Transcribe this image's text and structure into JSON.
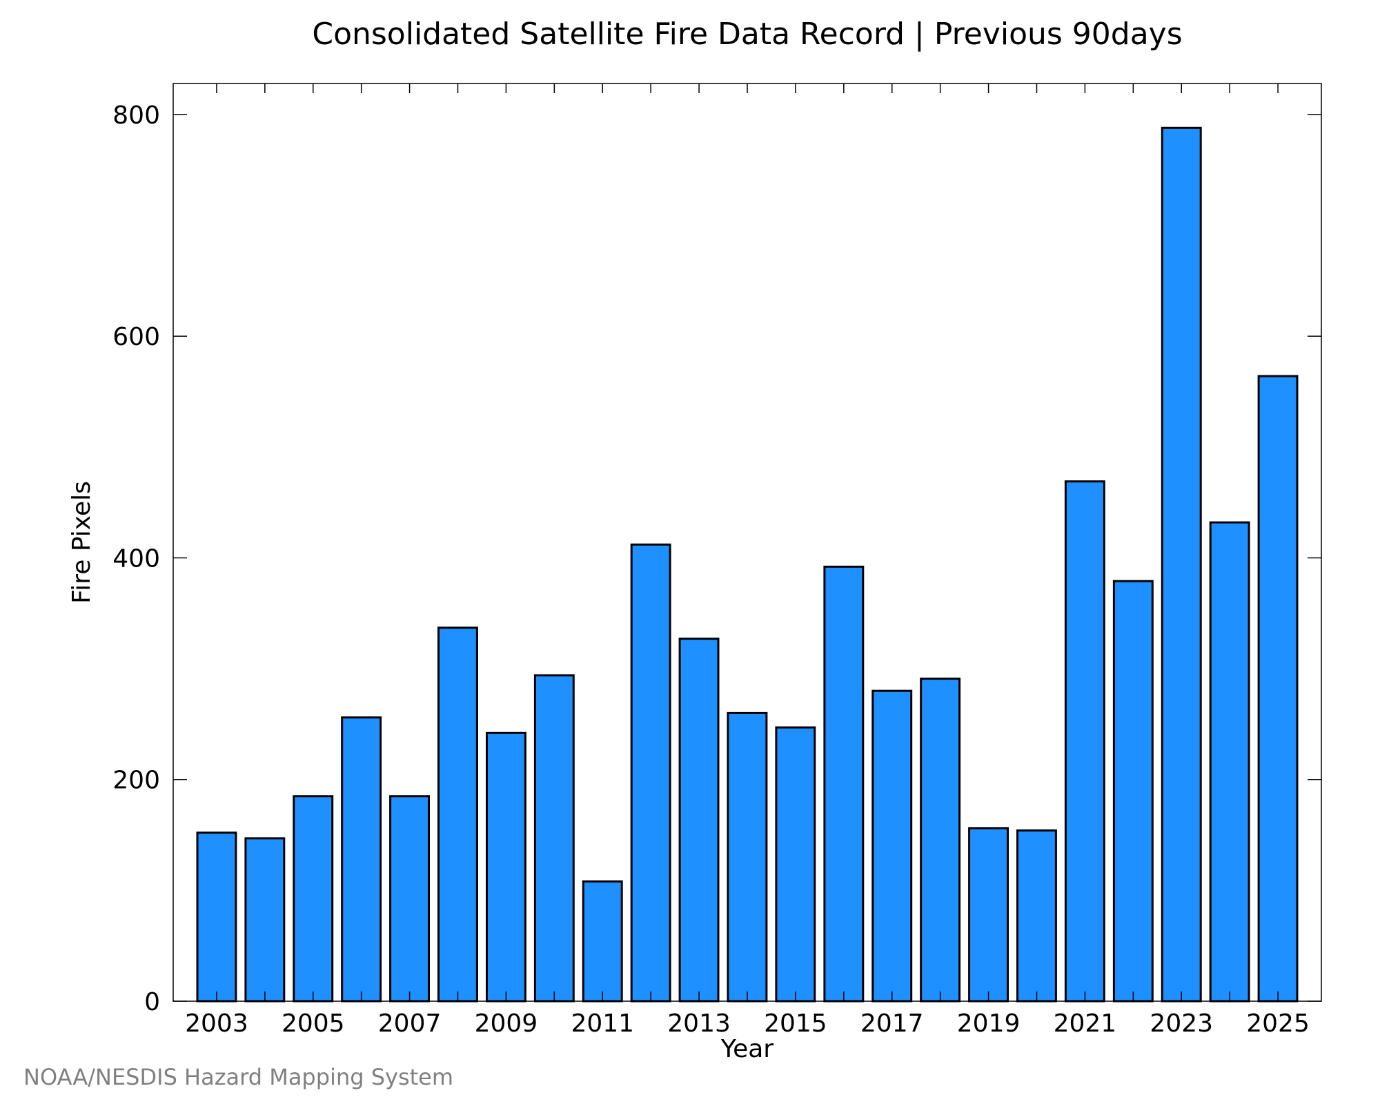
{
  "chart_data": {
    "type": "bar",
    "title": "Consolidated Satellite Fire Data Record | Previous 90days",
    "xlabel": "Year",
    "ylabel": "Fire Pixels",
    "categories": [
      "2003",
      "2004",
      "2005",
      "2006",
      "2007",
      "2008",
      "2009",
      "2010",
      "2011",
      "2012",
      "2013",
      "2014",
      "2015",
      "2016",
      "2017",
      "2018",
      "2019",
      "2020",
      "2021",
      "2022",
      "2023",
      "2024",
      "2025"
    ],
    "values": [
      152,
      147,
      185,
      256,
      185,
      337,
      242,
      294,
      108,
      412,
      327,
      260,
      247,
      392,
      280,
      291,
      156,
      154,
      469,
      379,
      788,
      432,
      564
    ],
    "x_tick_labels": [
      "2003",
      "2005",
      "2007",
      "2009",
      "2011",
      "2013",
      "2015",
      "2017",
      "2019",
      "2021",
      "2023",
      "2025"
    ],
    "y_tick_labels": [
      "0",
      "200",
      "400",
      "600",
      "800"
    ],
    "ylim": [
      0,
      828
    ],
    "grid": false,
    "bar_color": "#1e90ff",
    "credit": "NOAA/NESDIS Hazard Mapping System"
  }
}
